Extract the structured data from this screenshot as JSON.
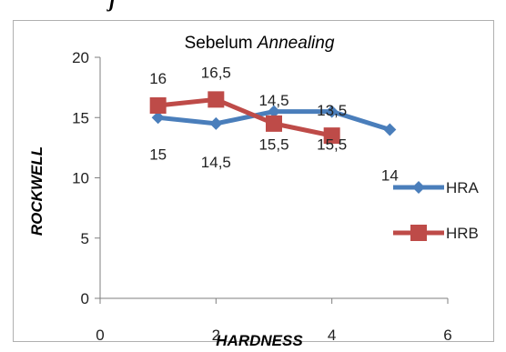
{
  "header_text": "j",
  "chart_data": {
    "type": "line",
    "title_plain": "Sebelum ",
    "title_italic": "Annealing",
    "xlabel": "HARDNESS",
    "ylabel": "ROCKWELL",
    "xlim": [
      0,
      6
    ],
    "ylim": [
      0,
      20
    ],
    "x_ticks": [
      "0",
      "2",
      "4",
      "6"
    ],
    "y_ticks": [
      "0",
      "5",
      "10",
      "15",
      "20"
    ],
    "grid": false,
    "legend_position": "right",
    "series": [
      {
        "name": "HRA",
        "color": "#4a7ebb",
        "marker": "diamond",
        "x": [
          1,
          2,
          3,
          4,
          5
        ],
        "y": [
          15,
          14.5,
          15.5,
          15.5,
          14
        ],
        "labels": [
          "15",
          "14,5",
          "15,5",
          "15,5",
          "14"
        ]
      },
      {
        "name": "HRB",
        "color": "#be4b48",
        "marker": "square",
        "x": [
          1,
          2,
          3,
          4
        ],
        "y": [
          16,
          16.5,
          14.5,
          13.5
        ],
        "labels": [
          "16",
          "16,5",
          "14,5",
          "13,5"
        ]
      }
    ]
  }
}
